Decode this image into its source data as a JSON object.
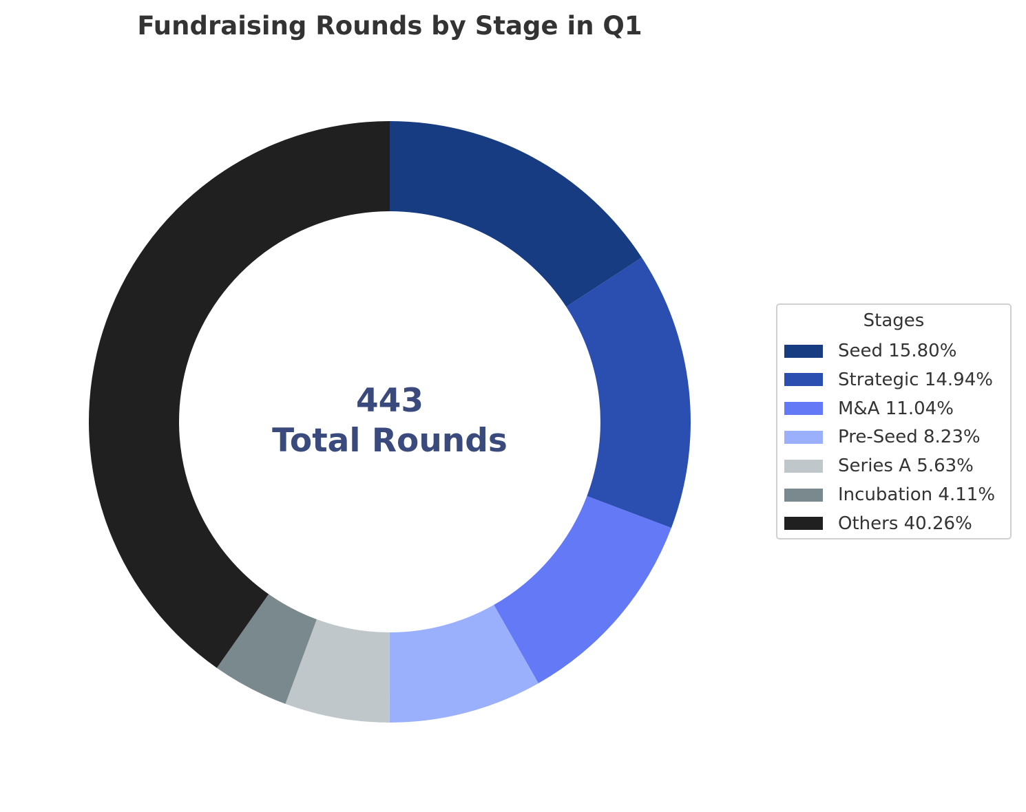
{
  "chart_data": {
    "type": "pie",
    "subtype": "donut",
    "title": "Fundraising Rounds by Stage in Q1",
    "center_label": {
      "value": "443",
      "text": "Total Rounds"
    },
    "legend": {
      "title": "Stages",
      "placement": "right"
    },
    "start_angle": "top",
    "direction": "clockwise",
    "slices": [
      {
        "label": "Seed",
        "percent": 15.8,
        "legend_text": "Seed 15.80%",
        "color": "#173c82"
      },
      {
        "label": "Strategic",
        "percent": 14.94,
        "legend_text": "Strategic 14.94%",
        "color": "#2a4fb0"
      },
      {
        "label": "M&A",
        "percent": 11.04,
        "legend_text": "M&A 11.04%",
        "color": "#6479f5"
      },
      {
        "label": "Pre-Seed",
        "percent": 8.23,
        "legend_text": "Pre-Seed 8.23%",
        "color": "#9bb0fc"
      },
      {
        "label": "Series A",
        "percent": 5.63,
        "legend_text": "Series A 5.63%",
        "color": "#c0c7cb"
      },
      {
        "label": "Incubation",
        "percent": 4.11,
        "legend_text": "Incubation 4.11%",
        "color": "#7a898e"
      },
      {
        "label": "Others",
        "percent": 40.26,
        "legend_text": "Others 40.26%",
        "color": "#202020"
      }
    ]
  }
}
